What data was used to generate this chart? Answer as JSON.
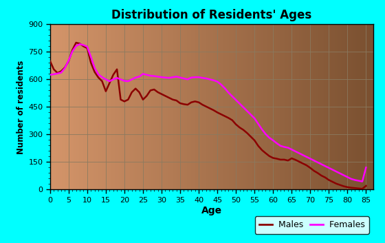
{
  "title": "Distribution of Residents' Ages",
  "xlabel": "Age",
  "ylabel": "Number of residents",
  "background_outer": "#00ffff",
  "background_inner_left": "#d4956a",
  "background_inner_right": "#7a5030",
  "ylim": [
    0,
    900
  ],
  "xlim": [
    0,
    87
  ],
  "yticks": [
    0,
    150,
    300,
    450,
    600,
    750,
    900
  ],
  "xticks": [
    0,
    5,
    10,
    15,
    20,
    25,
    30,
    35,
    40,
    45,
    50,
    55,
    60,
    65,
    70,
    75,
    80,
    85
  ],
  "males_color": "#8b0000",
  "females_color": "#ff00ff",
  "ages": [
    0,
    1,
    2,
    3,
    4,
    5,
    6,
    7,
    8,
    9,
    10,
    11,
    12,
    13,
    14,
    15,
    16,
    17,
    18,
    19,
    20,
    21,
    22,
    23,
    24,
    25,
    26,
    27,
    28,
    29,
    30,
    31,
    32,
    33,
    34,
    35,
    36,
    37,
    38,
    39,
    40,
    41,
    42,
    43,
    44,
    45,
    46,
    47,
    48,
    49,
    50,
    51,
    52,
    53,
    54,
    55,
    56,
    57,
    58,
    59,
    60,
    61,
    62,
    63,
    64,
    65,
    66,
    67,
    68,
    69,
    70,
    71,
    72,
    73,
    74,
    75,
    76,
    77,
    78,
    79,
    80,
    81,
    82,
    83,
    84,
    85
  ],
  "males": [
    700,
    655,
    635,
    645,
    665,
    700,
    760,
    800,
    795,
    780,
    770,
    690,
    640,
    610,
    590,
    535,
    580,
    625,
    655,
    490,
    480,
    490,
    530,
    550,
    530,
    490,
    510,
    540,
    545,
    530,
    520,
    510,
    500,
    490,
    485,
    470,
    465,
    462,
    475,
    480,
    475,
    462,
    452,
    442,
    432,
    420,
    410,
    400,
    390,
    378,
    355,
    338,
    325,
    308,
    288,
    268,
    238,
    215,
    198,
    182,
    172,
    168,
    163,
    163,
    158,
    170,
    162,
    152,
    142,
    132,
    118,
    102,
    90,
    76,
    66,
    52,
    42,
    32,
    25,
    18,
    13,
    10,
    8,
    6,
    4,
    20
  ],
  "females": [
    625,
    628,
    632,
    637,
    662,
    703,
    752,
    782,
    792,
    787,
    778,
    722,
    662,
    627,
    612,
    600,
    590,
    600,
    608,
    600,
    592,
    590,
    600,
    610,
    615,
    630,
    625,
    620,
    618,
    615,
    612,
    610,
    608,
    612,
    615,
    610,
    605,
    600,
    610,
    612,
    612,
    608,
    605,
    600,
    595,
    588,
    572,
    552,
    528,
    508,
    488,
    468,
    448,
    428,
    408,
    388,
    358,
    328,
    302,
    282,
    268,
    252,
    238,
    232,
    228,
    218,
    208,
    198,
    188,
    178,
    168,
    158,
    148,
    138,
    128,
    118,
    108,
    98,
    88,
    78,
    68,
    58,
    52,
    48,
    44,
    120
  ]
}
